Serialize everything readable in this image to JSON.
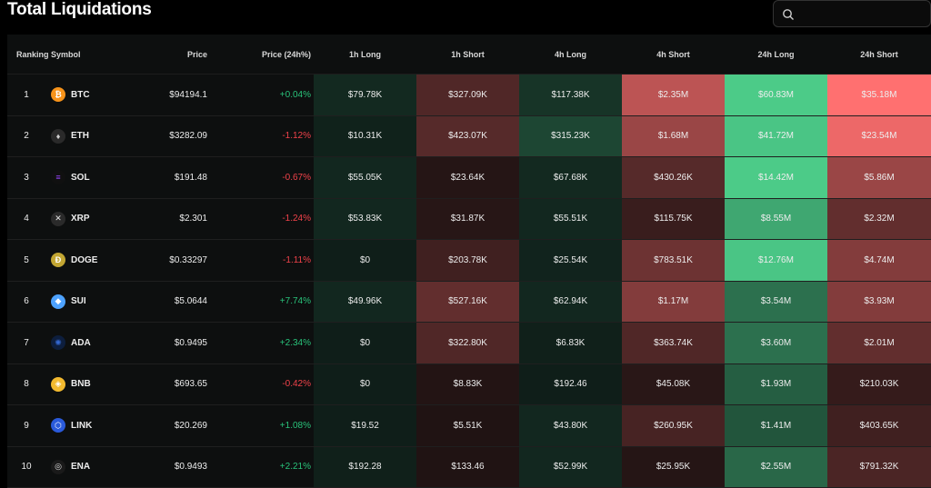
{
  "title": "Total Liquidations",
  "search": {
    "placeholder": ""
  },
  "headers": {
    "ranking": "Ranking",
    "symbol": "Symbol",
    "price": "Price",
    "change": "Price (24h%)",
    "h1_long": "1h Long",
    "h1_short": "1h Short",
    "h4_long": "4h Long",
    "h4_short": "4h Short",
    "h24_long": "24h Long",
    "h24_short": "24h Short"
  },
  "colors": {
    "positive": "#29c27a",
    "negative": "#f0424a",
    "long_heat": "#4fd48e",
    "short_heat": "#ff7070"
  },
  "rows": [
    {
      "rank": "1",
      "symbol": "BTC",
      "icon": "btc-icon",
      "price": "$94194.1",
      "change": "+0.04%",
      "dir": "pos",
      "h1_long": "$79.78K",
      "h1_short": "$327.09K",
      "h4_long": "$117.38K",
      "h4_short": "$2.35M",
      "h24_long": "$60.83M",
      "h24_short": "$35.18M",
      "heat": [
        0.06,
        0.22,
        0.12,
        0.7,
        0.95,
        1.0
      ]
    },
    {
      "rank": "2",
      "symbol": "ETH",
      "icon": "eth-icon",
      "price": "$3282.09",
      "change": "-1.12%",
      "dir": "neg",
      "h1_long": "$10.31K",
      "h1_short": "$423.07K",
      "h4_long": "$315.23K",
      "h4_short": "$1.68M",
      "h24_long": "$41.72M",
      "h24_short": "$23.54M",
      "heat": [
        0.02,
        0.25,
        0.22,
        0.55,
        0.92,
        0.92
      ]
    },
    {
      "rank": "3",
      "symbol": "SOL",
      "icon": "sol-icon",
      "price": "$191.48",
      "change": "-0.67%",
      "dir": "neg",
      "h1_long": "$55.05K",
      "h1_short": "$23.64K",
      "h4_long": "$67.68K",
      "h4_short": "$430.26K",
      "h24_long": "$14.42M",
      "h24_short": "$5.86M",
      "heat": [
        0.05,
        0.03,
        0.06,
        0.25,
        0.95,
        0.55
      ]
    },
    {
      "rank": "4",
      "symbol": "XRP",
      "icon": "xrp-icon",
      "price": "$2.301",
      "change": "-1.24%",
      "dir": "neg",
      "h1_long": "$53.83K",
      "h1_short": "$31.87K",
      "h4_long": "$55.51K",
      "h4_short": "$115.75K",
      "h24_long": "$8.55M",
      "h24_short": "$2.32M",
      "heat": [
        0.05,
        0.04,
        0.05,
        0.12,
        0.75,
        0.3
      ]
    },
    {
      "rank": "5",
      "symbol": "DOGE",
      "icon": "doge-icon",
      "price": "$0.33297",
      "change": "-1.11%",
      "dir": "neg",
      "h1_long": "$0",
      "h1_short": "$203.78K",
      "h4_long": "$25.54K",
      "h4_short": "$783.51K",
      "h24_long": "$12.76M",
      "h24_short": "$4.74M",
      "heat": [
        0.0,
        0.15,
        0.03,
        0.35,
        0.92,
        0.45
      ]
    },
    {
      "rank": "6",
      "symbol": "SUI",
      "icon": "sui-icon",
      "price": "$5.0644",
      "change": "+7.74%",
      "dir": "pos",
      "h1_long": "$49.96K",
      "h1_short": "$527.16K",
      "h4_long": "$62.94K",
      "h4_short": "$1.17M",
      "h24_long": "$3.54M",
      "h24_short": "$3.93M",
      "heat": [
        0.05,
        0.3,
        0.05,
        0.45,
        0.45,
        0.45
      ]
    },
    {
      "rank": "7",
      "symbol": "ADA",
      "icon": "ada-icon",
      "price": "$0.9495",
      "change": "+2.34%",
      "dir": "pos",
      "h1_long": "$0",
      "h1_short": "$322.80K",
      "h4_long": "$6.83K",
      "h4_short": "$363.74K",
      "h24_long": "$3.60M",
      "h24_short": "$2.01M",
      "heat": [
        0.0,
        0.22,
        0.01,
        0.22,
        0.45,
        0.3
      ]
    },
    {
      "rank": "8",
      "symbol": "BNB",
      "icon": "bnb-icon",
      "price": "$693.65",
      "change": "-0.42%",
      "dir": "neg",
      "h1_long": "$0",
      "h1_short": "$8.83K",
      "h4_long": "$192.46",
      "h4_short": "$45.08K",
      "h24_long": "$1.93M",
      "h24_short": "$210.03K",
      "heat": [
        0.0,
        0.02,
        0.0,
        0.05,
        0.35,
        0.1
      ]
    },
    {
      "rank": "9",
      "symbol": "LINK",
      "icon": "link-icon",
      "price": "$20.269",
      "change": "+1.08%",
      "dir": "pos",
      "h1_long": "$19.52",
      "h1_short": "$5.51K",
      "h4_long": "$43.80K",
      "h4_short": "$260.95K",
      "h24_long": "$1.41M",
      "h24_short": "$403.65K",
      "heat": [
        0.0,
        0.01,
        0.05,
        0.18,
        0.3,
        0.15
      ]
    },
    {
      "rank": "10",
      "symbol": "ENA",
      "icon": "ena-icon",
      "price": "$0.9493",
      "change": "+2.21%",
      "dir": "pos",
      "h1_long": "$192.28",
      "h1_short": "$133.46",
      "h4_long": "$52.99K",
      "h4_short": "$25.95K",
      "h24_long": "$2.55M",
      "h24_short": "$791.32K",
      "heat": [
        0.01,
        0.01,
        0.05,
        0.03,
        0.4,
        0.2
      ]
    }
  ]
}
